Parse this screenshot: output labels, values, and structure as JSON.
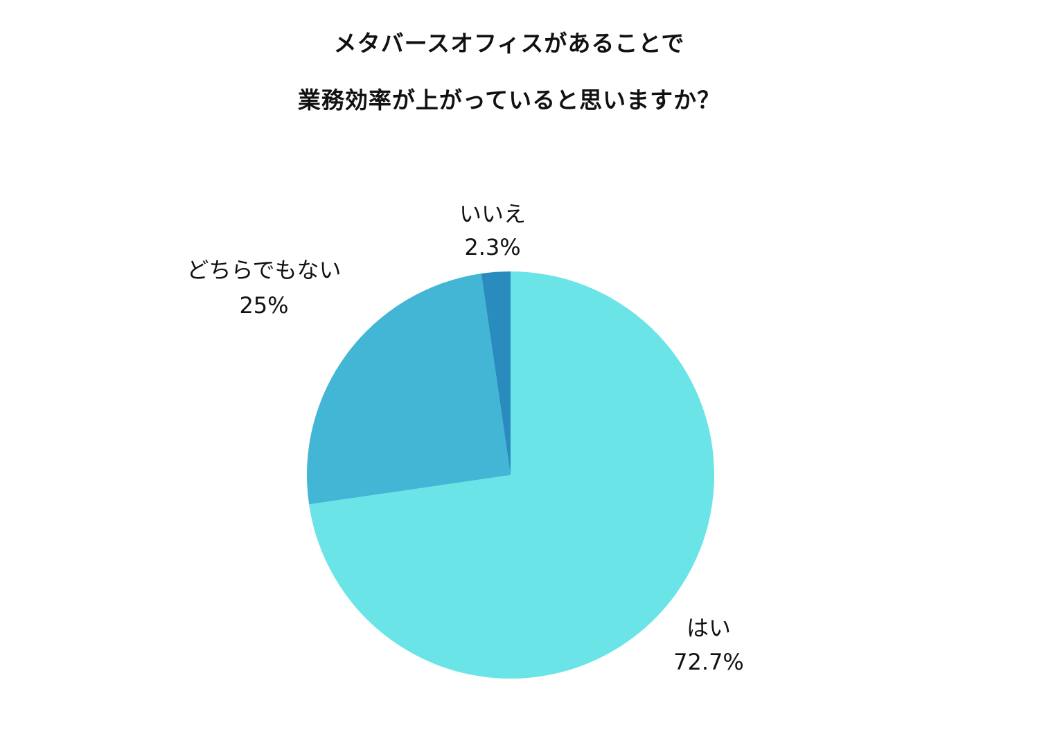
{
  "chart_data": {
    "type": "pie",
    "title_lines": [
      "メタバースオフィスがあることで",
      "業務効率が上がっていると思いますか？"
    ],
    "slices": [
      {
        "label": "はい",
        "value": 72.7,
        "value_label": "72.7%",
        "color": "#6BE4E8"
      },
      {
        "label": "どちらでもない",
        "value": 25,
        "value_label": "25%",
        "color": "#42B6D4"
      },
      {
        "label": "いいえ",
        "value": 2.3,
        "value_label": "2.3%",
        "color": "#2A8CBE"
      }
    ],
    "start": "12 o'clock",
    "direction": "clockwise",
    "legend": "none"
  }
}
